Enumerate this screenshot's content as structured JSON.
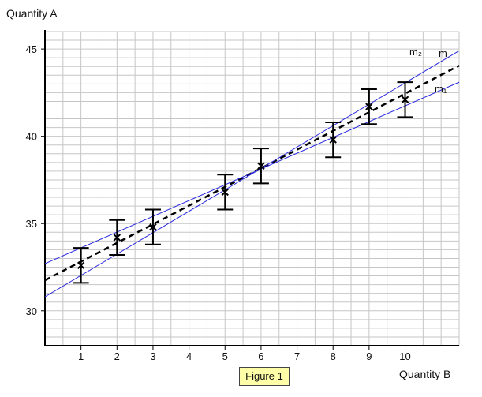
{
  "chart_data": {
    "type": "scatter",
    "ylabel": "Quantity A",
    "xlabel": "Quantity B",
    "caption": "Figure 1",
    "xlim": [
      0,
      11.5
    ],
    "ylim": [
      28,
      46
    ],
    "x_ticks": [
      1,
      2,
      3,
      4,
      5,
      6,
      7,
      8,
      9,
      10
    ],
    "y_ticks": [
      30,
      35,
      40,
      45
    ],
    "grid": true,
    "minor_grid_step": 0.5,
    "series": [
      {
        "name": "data",
        "x": [
          1,
          2,
          3,
          5,
          6,
          8,
          9,
          10
        ],
        "y": [
          32.6,
          34.2,
          34.8,
          36.8,
          38.3,
          39.8,
          41.7,
          42.1
        ],
        "error": 1.0,
        "marker": "x",
        "color": "#000000"
      }
    ],
    "lines": [
      {
        "label": "m",
        "y_at_0": 31.75,
        "y_at_end": 44.05,
        "style": "dashed",
        "color": "#000000"
      },
      {
        "label": "m₂",
        "y_at_0": 30.8,
        "y_at_end": 44.9,
        "style": "solid",
        "color": "#2a2ae0"
      },
      {
        "label": "m₁",
        "y_at_0": 32.7,
        "y_at_end": 43.1,
        "style": "solid",
        "color": "#2a2ae0"
      }
    ]
  }
}
